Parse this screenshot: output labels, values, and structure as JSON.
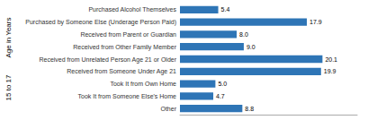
{
  "chart_data": {
    "type": "bar",
    "orientation": "horizontal",
    "ylabel": [
      "Age in Years",
      "15 to 17"
    ],
    "categories": [
      "Other",
      "Took It from Someone Else's Home",
      "Took It from Own Home",
      "Received from Someone Under Age 21",
      "Received from Unrelated Person Age 21 or Older",
      "Received from Other Family Member",
      "Received from Parent or Guardian",
      "Purchased by Someone Else (Underage Person Paid)",
      "Purchased Alcohol Themselves"
    ],
    "values": [
      8.8,
      4.7,
      5.0,
      19.9,
      20.1,
      9.0,
      8.0,
      17.9,
      5.4
    ],
    "value_labels": [
      "8.8",
      "4.7",
      "5.0",
      "19.9",
      "20.1",
      "9.0",
      "8.0",
      "17.9",
      "5.4"
    ],
    "color": "#2e75b6",
    "xlim": [
      0,
      25
    ],
    "grid": false,
    "data_labels": true,
    "tick_labels": "y"
  }
}
